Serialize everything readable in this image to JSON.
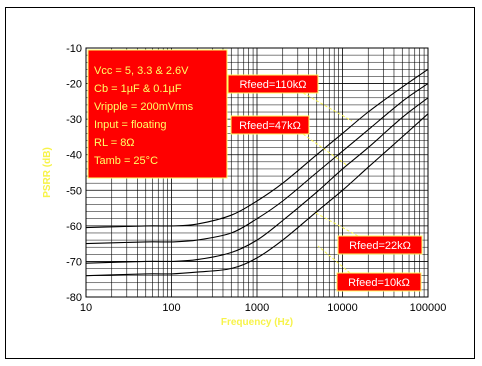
{
  "chart_data": {
    "type": "line",
    "xlabel": "Frequency (Hz)",
    "ylabel": "PSRR (dB)",
    "x_scale": "log",
    "xlim": [
      10,
      100000
    ],
    "ylim": [
      -80,
      -10
    ],
    "grid": true,
    "x_ticks": [
      "10",
      "100",
      "1000",
      "10000",
      "100000"
    ],
    "y_ticks": [
      "-10",
      "-20",
      "-30",
      "-40",
      "-50",
      "-60",
      "-70",
      "-80"
    ],
    "x": [
      10,
      50,
      100,
      200,
      500,
      1000,
      2000,
      5000,
      10000,
      20000,
      50000,
      100000
    ],
    "series": [
      {
        "name": "Rfeed=110kΩ",
        "values": [
          -60.5,
          -60,
          -60,
          -59.5,
          -57,
          -53,
          -48,
          -40,
          -34,
          -28,
          -21,
          -16
        ]
      },
      {
        "name": "Rfeed=47kΩ",
        "values": [
          -65,
          -64.5,
          -64.5,
          -64,
          -62,
          -58,
          -53,
          -45,
          -39,
          -33,
          -25,
          -20
        ]
      },
      {
        "name": "Rfeed=22kΩ",
        "values": [
          -70.5,
          -70,
          -70,
          -69.5,
          -67.5,
          -64,
          -58.5,
          -50.5,
          -44,
          -38,
          -29.5,
          -24
        ]
      },
      {
        "name": "Rfeed=10kΩ",
        "values": [
          -74,
          -73.5,
          -73.5,
          -73,
          -72,
          -69,
          -64,
          -56,
          -50,
          -43.5,
          -35,
          -28.5
        ]
      }
    ],
    "annotation_lines": [
      "Vcc = 5, 3.3 & 2.6V",
      "Cb = 1µF & 0.1µF",
      "Vripple = 200mVrms",
      "Input = floating",
      "RL = 8Ω",
      "Tamb = 25°C"
    ],
    "colors": {
      "box_fill": "#ff0000",
      "box_text": "#ffff66",
      "axis_title": "#f7f34a",
      "leader": "#f7f34a",
      "line": "#000000"
    }
  }
}
